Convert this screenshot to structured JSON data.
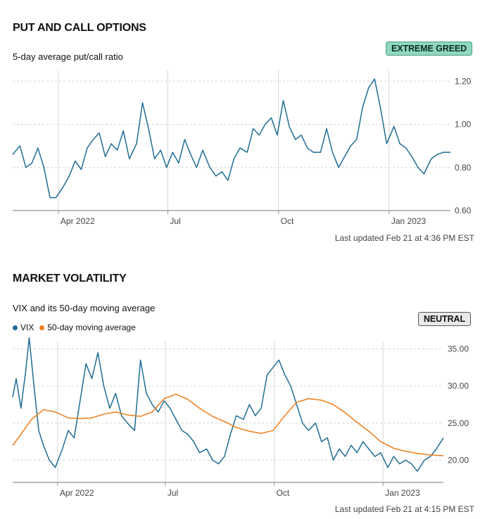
{
  "put_call": {
    "title": "PUT AND CALL OPTIONS",
    "subtitle": "5-day average put/call ratio",
    "badge": "EXTREME GREED",
    "updated": "Last updated Feb 21 at 4:36 PM EST"
  },
  "volatility": {
    "title": "MARKET VOLATILITY",
    "subtitle": "VIX and its 50-day moving average",
    "badge": "NEUTRAL",
    "updated": "Last updated Feb 21 at 4:15 PM EST",
    "legend": [
      "VIX",
      "50-day moving average"
    ]
  },
  "colors": {
    "line": "#1f6d93",
    "ma": "#ee7d1a",
    "greed_badge": "#8fd8bf",
    "grid": "#d6d6d6"
  },
  "chart_data": [
    {
      "type": "line",
      "title": "5-day average put/call ratio",
      "ylim": [
        0.6,
        1.25
      ],
      "y_ticks": [
        "1.20",
        "1.00",
        "0.80",
        "0.60"
      ],
      "y_tick_values": [
        1.2,
        1.0,
        0.8,
        0.6
      ],
      "x_ticks": [
        "Apr 2022",
        "Jul",
        "Oct",
        "Jan 2023"
      ],
      "x_tick_dates": [
        "2022-04-01",
        "2022-07-01",
        "2022-10-01",
        "2023-01-01"
      ],
      "x_range": [
        "2022-02-22",
        "2023-02-21"
      ],
      "grid": "dashed",
      "series": [
        {
          "x": [
            "2022-02-22",
            "2022-02-28",
            "2022-03-05",
            "2022-03-10",
            "2022-03-15",
            "2022-03-20",
            "2022-03-25",
            "2022-03-30",
            "2022-04-05",
            "2022-04-10",
            "2022-04-15",
            "2022-04-20",
            "2022-04-25",
            "2022-04-30",
            "2022-05-05",
            "2022-05-10",
            "2022-05-15",
            "2022-05-20",
            "2022-05-25",
            "2022-05-30",
            "2022-06-05",
            "2022-06-10",
            "2022-06-15",
            "2022-06-20",
            "2022-06-25",
            "2022-06-30",
            "2022-07-05",
            "2022-07-10",
            "2022-07-15",
            "2022-07-20",
            "2022-07-25",
            "2022-07-30",
            "2022-08-05",
            "2022-08-10",
            "2022-08-15",
            "2022-08-20",
            "2022-08-25",
            "2022-08-30",
            "2022-09-05",
            "2022-09-10",
            "2022-09-15",
            "2022-09-20",
            "2022-09-25",
            "2022-09-30",
            "2022-10-05",
            "2022-10-10",
            "2022-10-15",
            "2022-10-20",
            "2022-10-25",
            "2022-10-30",
            "2022-11-05",
            "2022-11-10",
            "2022-11-15",
            "2022-11-20",
            "2022-11-25",
            "2022-11-30",
            "2022-12-05",
            "2022-12-10",
            "2022-12-15",
            "2022-12-20",
            "2022-12-25",
            "2022-12-30",
            "2023-01-05",
            "2023-01-10",
            "2023-01-15",
            "2023-01-20",
            "2023-01-25",
            "2023-01-30",
            "2023-02-05",
            "2023-02-10",
            "2023-02-15",
            "2023-02-21"
          ],
          "values": [
            0.86,
            0.9,
            0.8,
            0.82,
            0.89,
            0.8,
            0.66,
            0.66,
            0.71,
            0.76,
            0.83,
            0.79,
            0.89,
            0.93,
            0.96,
            0.85,
            0.91,
            0.88,
            0.97,
            0.84,
            0.91,
            1.1,
            0.98,
            0.84,
            0.88,
            0.8,
            0.87,
            0.82,
            0.93,
            0.86,
            0.8,
            0.88,
            0.8,
            0.76,
            0.78,
            0.74,
            0.84,
            0.89,
            0.87,
            0.98,
            0.95,
            1.0,
            1.03,
            0.95,
            1.11,
            0.99,
            0.93,
            0.95,
            0.89,
            0.87,
            0.87,
            0.98,
            0.87,
            0.8,
            0.85,
            0.9,
            0.93,
            1.08,
            1.17,
            1.21,
            1.07,
            0.91,
            0.99,
            0.91,
            0.89,
            0.85,
            0.8,
            0.77,
            0.84,
            0.86,
            0.87,
            0.87
          ]
        }
      ]
    },
    {
      "type": "line",
      "title": "VIX and its 50-day moving average",
      "ylim": [
        17,
        36
      ],
      "y_ticks": [
        "35.00",
        "30.00",
        "25.00",
        "20.00"
      ],
      "y_tick_values": [
        35,
        30,
        25,
        20
      ],
      "x_ticks": [
        "Apr 2022",
        "Jul",
        "Oct",
        "Jan 2023"
      ],
      "x_tick_dates": [
        "2022-04-01",
        "2022-07-01",
        "2022-10-01",
        "2023-01-01"
      ],
      "x_range": [
        "2022-02-22",
        "2023-02-21"
      ],
      "grid": "dashed",
      "legend_position": "top-left",
      "series": [
        {
          "name": "VIX",
          "x": [
            "2022-02-22",
            "2022-02-25",
            "2022-03-01",
            "2022-03-05",
            "2022-03-08",
            "2022-03-12",
            "2022-03-16",
            "2022-03-20",
            "2022-03-25",
            "2022-03-30",
            "2022-04-05",
            "2022-04-10",
            "2022-04-15",
            "2022-04-20",
            "2022-04-25",
            "2022-04-30",
            "2022-05-05",
            "2022-05-10",
            "2022-05-15",
            "2022-05-20",
            "2022-05-25",
            "2022-05-30",
            "2022-06-05",
            "2022-06-10",
            "2022-06-15",
            "2022-06-20",
            "2022-06-25",
            "2022-06-30",
            "2022-07-05",
            "2022-07-10",
            "2022-07-15",
            "2022-07-20",
            "2022-07-25",
            "2022-07-30",
            "2022-08-05",
            "2022-08-10",
            "2022-08-15",
            "2022-08-20",
            "2022-08-25",
            "2022-08-30",
            "2022-09-05",
            "2022-09-10",
            "2022-09-15",
            "2022-09-20",
            "2022-09-25",
            "2022-09-30",
            "2022-10-05",
            "2022-10-10",
            "2022-10-15",
            "2022-10-20",
            "2022-10-25",
            "2022-10-30",
            "2022-11-05",
            "2022-11-10",
            "2022-11-15",
            "2022-11-20",
            "2022-11-25",
            "2022-11-30",
            "2022-12-05",
            "2022-12-10",
            "2022-12-15",
            "2022-12-20",
            "2022-12-25",
            "2022-12-30",
            "2023-01-05",
            "2023-01-10",
            "2023-01-15",
            "2023-01-20",
            "2023-01-25",
            "2023-01-30",
            "2023-02-05",
            "2023-02-10",
            "2023-02-15",
            "2023-02-21"
          ],
          "values": [
            28.5,
            31.0,
            27.0,
            32.0,
            36.5,
            30.0,
            24.0,
            22.0,
            20.0,
            19.0,
            21.5,
            24.0,
            23.0,
            28.0,
            33.0,
            31.0,
            34.5,
            30.0,
            27.0,
            29.0,
            26.0,
            25.0,
            24.0,
            33.5,
            29.0,
            27.5,
            26.5,
            28.0,
            27.0,
            25.5,
            24.0,
            23.5,
            22.5,
            21.0,
            21.5,
            20.0,
            19.5,
            20.5,
            23.5,
            26.0,
            25.5,
            27.5,
            26.0,
            27.0,
            31.5,
            32.5,
            33.5,
            31.5,
            30.0,
            27.5,
            25.0,
            24.0,
            25.0,
            22.5,
            23.0,
            20.0,
            21.5,
            20.5,
            22.0,
            21.0,
            22.5,
            21.5,
            20.5,
            21.0,
            19.0,
            20.5,
            19.5,
            20.0,
            19.5,
            18.5,
            20.0,
            20.5,
            21.5,
            23.0
          ]
        },
        {
          "name": "50-day moving average",
          "x": [
            "2022-02-22",
            "2022-03-01",
            "2022-03-10",
            "2022-03-20",
            "2022-03-30",
            "2022-04-10",
            "2022-04-20",
            "2022-04-30",
            "2022-05-10",
            "2022-05-20",
            "2022-05-30",
            "2022-06-10",
            "2022-06-20",
            "2022-06-30",
            "2022-07-10",
            "2022-07-20",
            "2022-07-30",
            "2022-08-10",
            "2022-08-20",
            "2022-08-30",
            "2022-09-10",
            "2022-09-20",
            "2022-09-30",
            "2022-10-10",
            "2022-10-20",
            "2022-10-30",
            "2022-11-10",
            "2022-11-20",
            "2022-11-30",
            "2022-12-10",
            "2022-12-20",
            "2022-12-30",
            "2023-01-10",
            "2023-01-20",
            "2023-01-30",
            "2023-02-10",
            "2023-02-21"
          ],
          "values": [
            22.0,
            23.5,
            25.5,
            26.8,
            26.5,
            25.7,
            25.6,
            25.7,
            26.2,
            26.5,
            26.1,
            25.9,
            26.5,
            28.3,
            28.9,
            28.2,
            27.0,
            25.9,
            25.2,
            24.4,
            23.9,
            23.6,
            24.0,
            26.0,
            27.8,
            28.3,
            28.1,
            27.5,
            26.4,
            25.1,
            23.9,
            22.5,
            21.6,
            21.2,
            20.9,
            20.7,
            20.6
          ]
        }
      ]
    }
  ]
}
